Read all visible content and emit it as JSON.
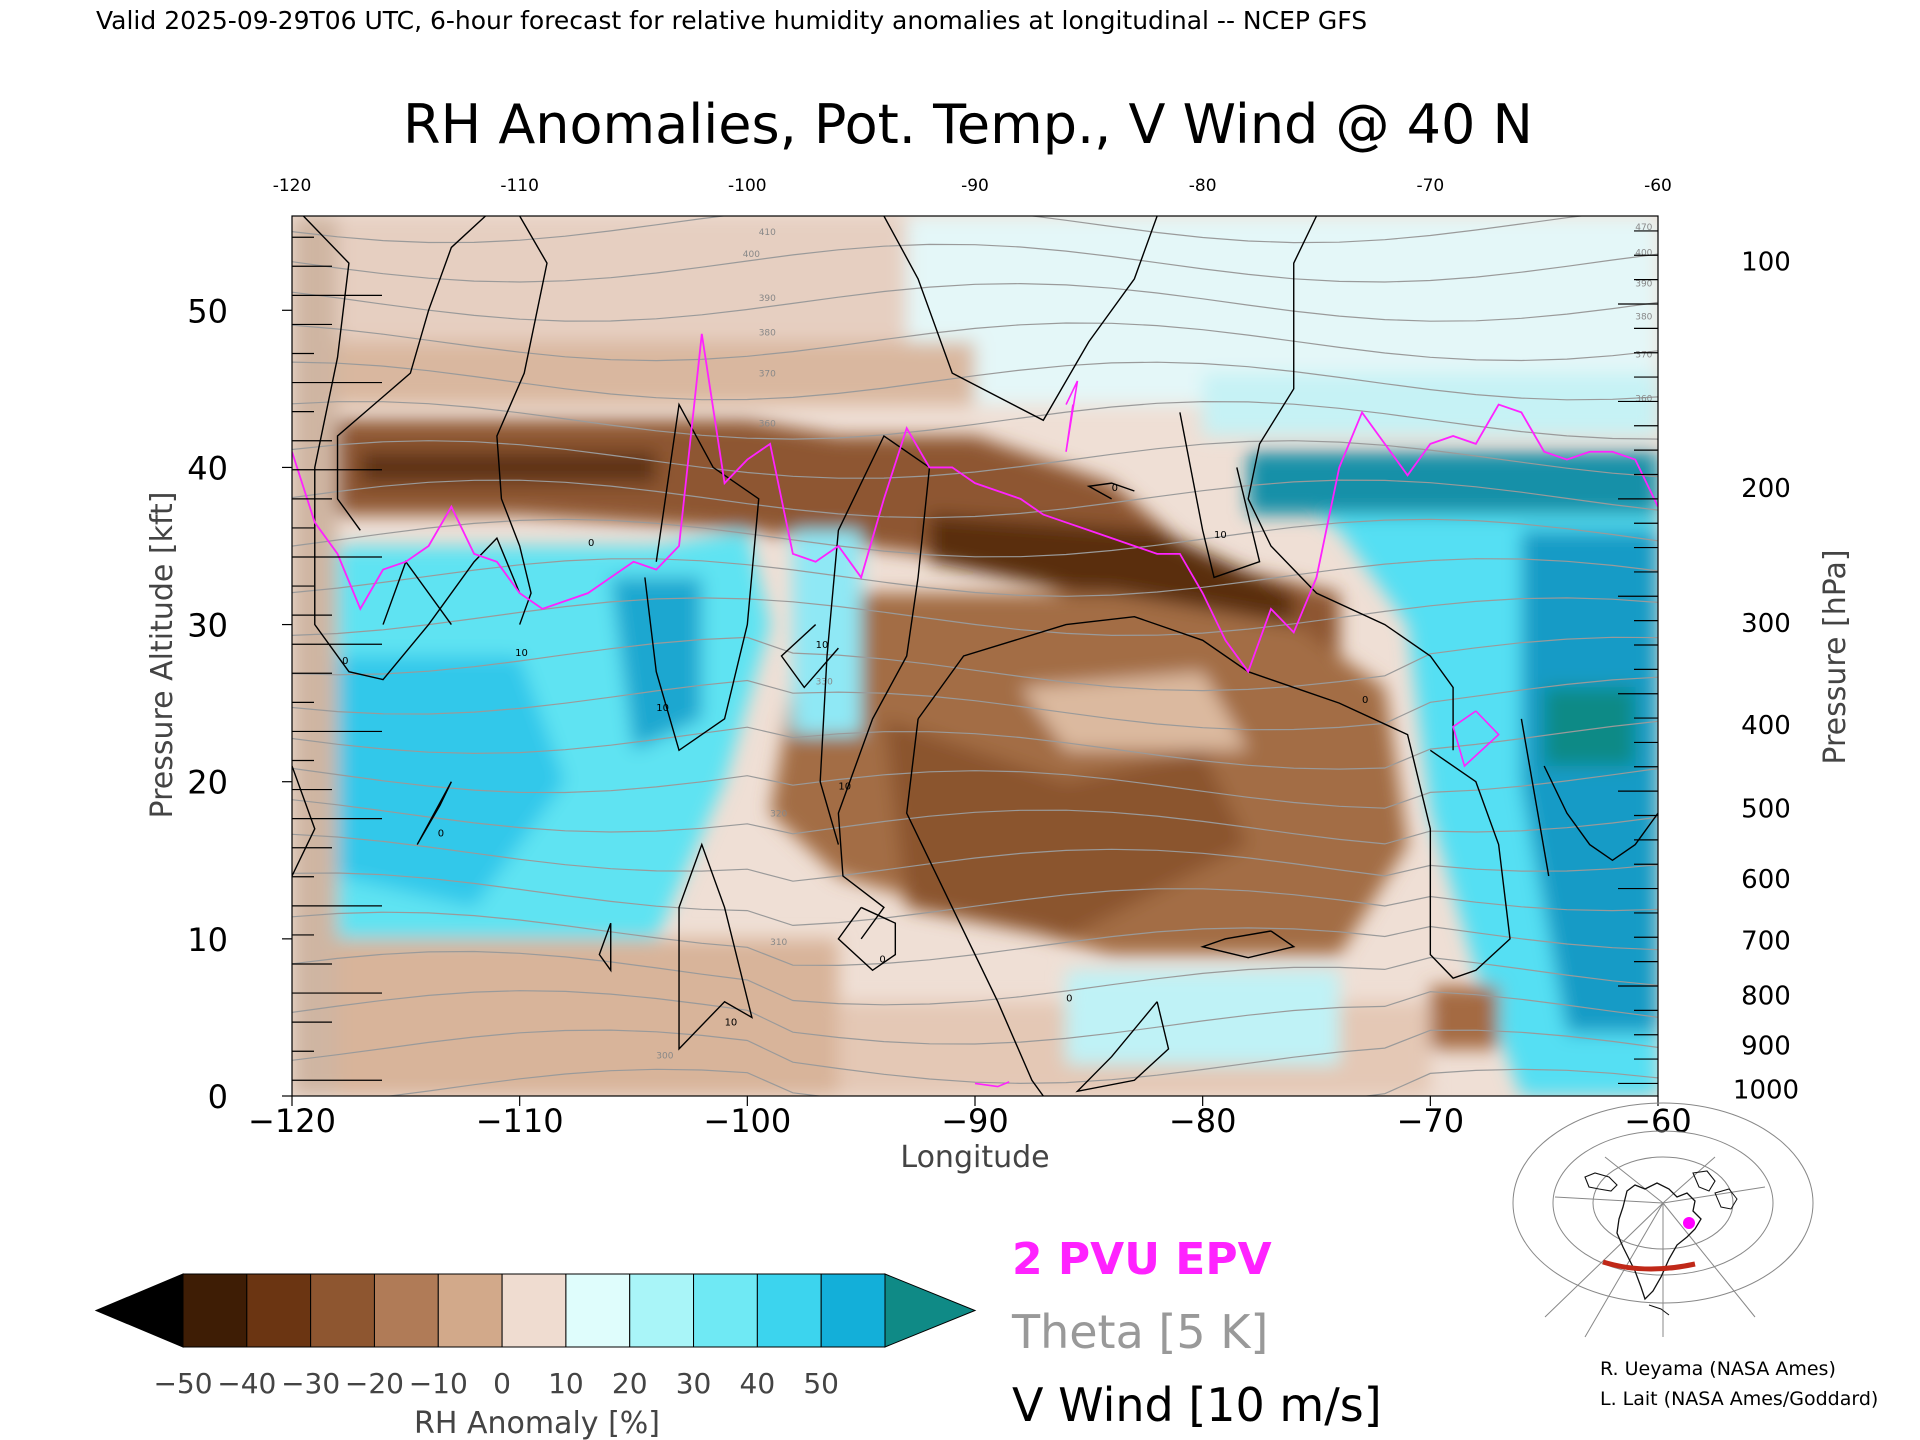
{
  "header": {
    "line": "Valid 2025-09-29T06 UTC, 6-hour forecast for relative humidity anomalies at longitudinal -- NCEP GFS"
  },
  "chart_data": {
    "type": "heatmap",
    "title": "RH Anomalies, Pot. Temp., V Wind @ 40 N",
    "xlabel": "Longitude",
    "ylabel": "Pressure Altitude [kft]",
    "ylabel_right": "Pressure [hPa]",
    "xlim": [
      -120,
      -60
    ],
    "ylim": [
      0,
      56
    ],
    "x_ticks_top": [
      "-120",
      "-110",
      "-100",
      "-90",
      "-80",
      "-70",
      "-60"
    ],
    "x_ticks_bottom": [
      "−120",
      "−110",
      "−100",
      "−90",
      "−80",
      "−70",
      "−60"
    ],
    "y_ticks_left": [
      "0",
      "10",
      "20",
      "30",
      "40",
      "50"
    ],
    "y_tick_values_left": [
      0,
      10,
      20,
      30,
      40,
      50
    ],
    "pressure_ticks": [
      {
        "label": "100",
        "kft": 53.1
      },
      {
        "label": "200",
        "kft": 38.7
      },
      {
        "label": "300",
        "kft": 30.1
      },
      {
        "label": "400",
        "kft": 23.6
      },
      {
        "label": "500",
        "kft": 18.3
      },
      {
        "label": "600",
        "kft": 13.8
      },
      {
        "label": "700",
        "kft": 9.9
      },
      {
        "label": "800",
        "kft": 6.4
      },
      {
        "label": "900",
        "kft": 3.2
      },
      {
        "label": "1000",
        "kft": 0.4
      }
    ],
    "colorbar": {
      "label": "RH Anomaly [%]",
      "ticks": [
        "−50",
        "−40",
        "−30",
        "−20",
        "−10",
        "0",
        "10",
        "20",
        "30",
        "40",
        "50"
      ],
      "colors": [
        "#3e1d05",
        "#6b3512",
        "#8e5630",
        "#b07b57",
        "#d2a98a",
        "#efdcd0",
        "#dffdfc",
        "#a9f5f8",
        "#6fe9f4",
        "#3cd4ee",
        "#13afd9"
      ],
      "under_color": "#000000",
      "over_color": "#0f8a86"
    },
    "theta_contour_labels": [
      "300",
      "310",
      "320",
      "330",
      "340",
      "350",
      "360",
      "370",
      "380",
      "390",
      "400",
      "410",
      "470"
    ],
    "theta_levels": [
      300,
      305,
      310,
      315,
      320,
      325,
      330,
      335,
      340,
      345,
      350,
      355,
      360,
      365,
      370,
      375,
      380,
      385,
      390,
      395,
      400,
      405,
      410
    ],
    "vwind_contour_labels": [
      "0",
      "10"
    ],
    "epv_line": {
      "name": "2 PVU EPV",
      "color": "#ff22ff",
      "x": [
        -120,
        -119,
        -118,
        -117,
        -116,
        -115,
        -114,
        -113,
        -112,
        -111,
        -110,
        -109,
        -108,
        -107,
        -106,
        -105,
        -104,
        -103,
        -102,
        -101,
        -100,
        -99,
        -98,
        -97,
        -96,
        -95,
        -94,
        -93,
        -92,
        -91,
        -90,
        -89,
        -88,
        -87,
        -86,
        -85,
        -84,
        -83,
        -82,
        -81,
        -80,
        -79,
        -78,
        -77,
        -76,
        -75,
        -74,
        -73,
        -72,
        -71,
        -70,
        -69,
        -68,
        -67,
        -66,
        -65,
        -64,
        -63,
        -62,
        -61,
        -60
      ],
      "y": [
        41,
        36.5,
        34.5,
        31,
        33.5,
        34,
        35,
        37.5,
        34.5,
        34,
        32,
        31,
        31.5,
        32,
        33,
        34,
        33.5,
        35,
        48.5,
        39,
        40.5,
        41.5,
        34.5,
        34,
        35,
        33,
        38,
        42.5,
        40,
        40,
        39,
        38.5,
        38,
        37,
        36.5,
        36,
        35.5,
        35,
        34.5,
        34.5,
        32,
        29,
        27,
        31,
        29.5,
        33,
        40,
        43.5,
        41.5,
        39.5,
        41.5,
        42,
        41.5,
        44,
        43.5,
        41,
        40.5,
        41,
        41,
        40.5,
        37.5
      ]
    },
    "legend": {
      "epv": "2 PVU EPV",
      "theta": "Theta [5 K]",
      "vwind": "V Wind [10 m/s]"
    }
  },
  "credits": {
    "line1": "R. Ueyama (NASA Ames)",
    "line2": "L. Lait (NASA Ames/Goddard)"
  },
  "colors": {
    "epv": "#ff22ff",
    "theta": "#999999",
    "vwind": "#000000",
    "locator_track": "#c02818",
    "locator_dot": "#ff00ff"
  },
  "icons": {
    "locator_map": "north-america-polar-map-icon"
  }
}
